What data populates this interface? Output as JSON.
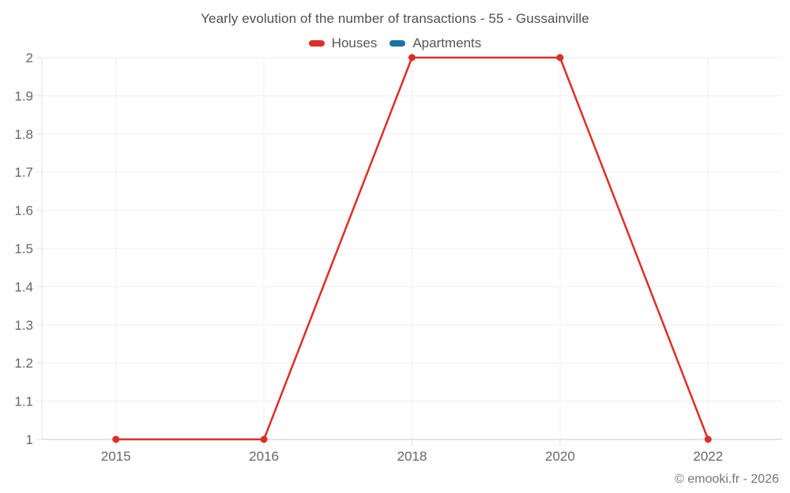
{
  "footer": {
    "credit": "© emooki.fr - 2026"
  },
  "chart_data": {
    "type": "line",
    "title": "Yearly evolution of the number of transactions - 55 - Gussainville",
    "categories": [
      "2015",
      "2016",
      "2018",
      "2020",
      "2022"
    ],
    "series": [
      {
        "name": "Houses",
        "color": "#dc2f27",
        "values": [
          1,
          1,
          2,
          2,
          1
        ]
      },
      {
        "name": "Apartments",
        "color": "#1a71a5",
        "values": []
      }
    ],
    "xlabel": "",
    "ylabel": "",
    "ylim": [
      1,
      2
    ],
    "ytick_step": 0.1,
    "grid": true,
    "legend_position": "top",
    "background": "#ffffff",
    "grid_color": "#efefef",
    "axis_color": "#c9c9c9"
  }
}
